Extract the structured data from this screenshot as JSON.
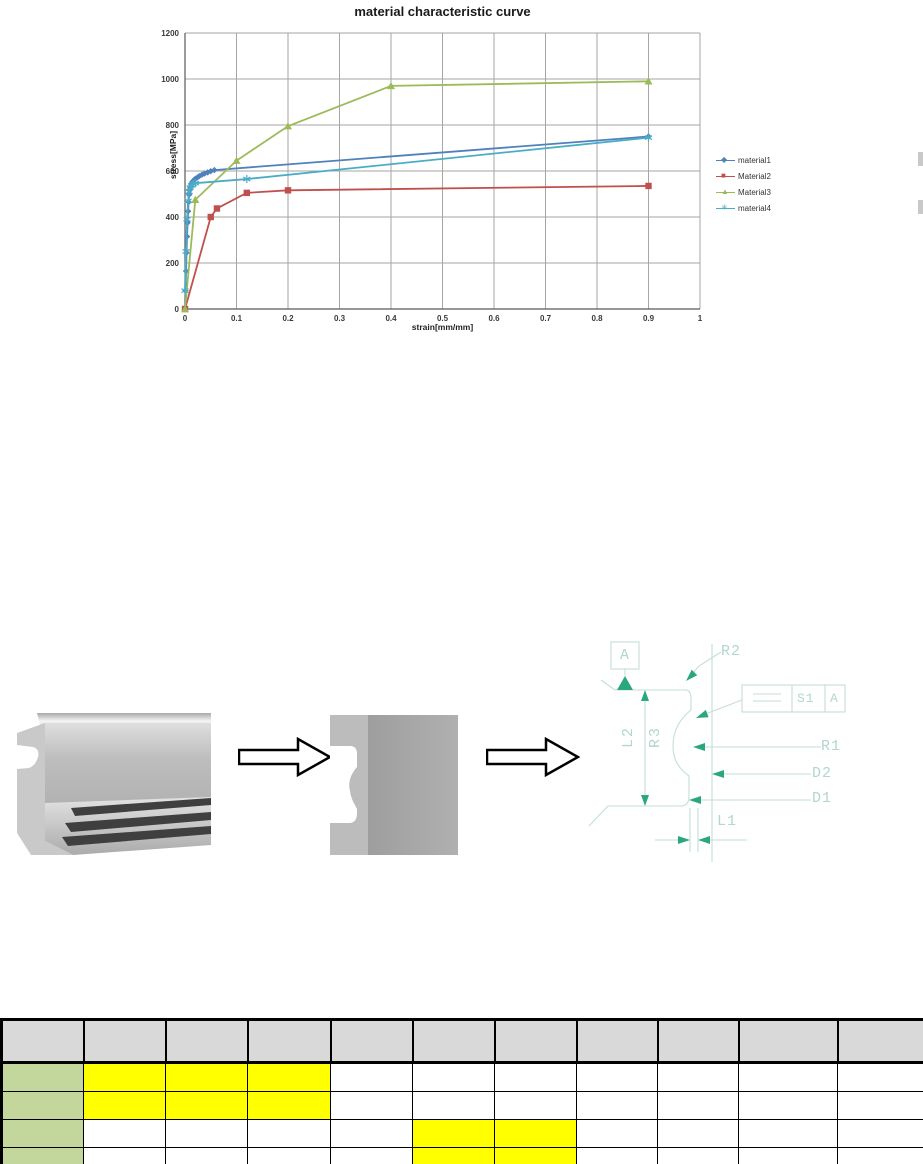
{
  "chart_data": {
    "type": "line",
    "title": "material characteristic curve",
    "xlabel": "strain[mm/mm]",
    "ylabel": "stress[MPa]",
    "xlim": [
      0,
      1
    ],
    "ylim": [
      0,
      1200
    ],
    "x_ticks": [
      "0",
      "0.1",
      "0.2",
      "0.3",
      "0.4",
      "0.5",
      "0.6",
      "0.7",
      "0.8",
      "0.9",
      "1"
    ],
    "y_ticks": [
      "0",
      "200",
      "400",
      "600",
      "800",
      "1000",
      "1200"
    ],
    "grid": true,
    "legend_position": "right",
    "series": [
      {
        "name": "material1",
        "color": "#4F81BD",
        "marker": "diamond",
        "glyph": "◆",
        "points": [
          [
            0,
            0
          ],
          [
            0.001,
            80
          ],
          [
            0.002,
            165
          ],
          [
            0.003,
            245
          ],
          [
            0.004,
            315
          ],
          [
            0.005,
            375
          ],
          [
            0.006,
            425
          ],
          [
            0.007,
            465
          ],
          [
            0.008,
            497
          ],
          [
            0.009,
            516
          ],
          [
            0.01,
            530
          ],
          [
            0.012,
            543
          ],
          [
            0.014,
            552
          ],
          [
            0.017,
            560
          ],
          [
            0.02,
            566
          ],
          [
            0.024,
            572
          ],
          [
            0.028,
            578
          ],
          [
            0.033,
            584
          ],
          [
            0.038,
            589
          ],
          [
            0.044,
            594
          ],
          [
            0.05,
            599
          ],
          [
            0.057,
            604
          ],
          [
            0.9,
            750
          ]
        ]
      },
      {
        "name": "Material2",
        "color": "#C0504D",
        "marker": "square",
        "glyph": "■",
        "points": [
          [
            0,
            0
          ],
          [
            0.05,
            400
          ],
          [
            0.062,
            437
          ],
          [
            0.12,
            505
          ],
          [
            0.2,
            516
          ],
          [
            0.9,
            535
          ]
        ]
      },
      {
        "name": "Material3",
        "color": "#9BBB59",
        "marker": "triangle",
        "glyph": "▲",
        "points": [
          [
            0,
            0
          ],
          [
            0.02,
            475
          ],
          [
            0.1,
            645
          ],
          [
            0.2,
            795
          ],
          [
            0.4,
            970
          ],
          [
            0.9,
            990
          ]
        ]
      },
      {
        "name": "material4",
        "color": "#4BACC6",
        "marker": "asterisk",
        "glyph": "✳",
        "points": [
          [
            0,
            80
          ],
          [
            0.002,
            250
          ],
          [
            0.004,
            390
          ],
          [
            0.006,
            470
          ],
          [
            0.008,
            510
          ],
          [
            0.01,
            528
          ],
          [
            0.013,
            538
          ],
          [
            0.016,
            543
          ],
          [
            0.02,
            547
          ],
          [
            0.12,
            565
          ],
          [
            0.9,
            745
          ]
        ]
      }
    ]
  },
  "drawing": {
    "datum_label": "A",
    "fcf": {
      "tolerance": "S1",
      "datum": "A"
    },
    "labels": {
      "r2": "R2",
      "r1": "R1",
      "d2": "D2",
      "d1": "D1",
      "l1": "L1",
      "l2": "L2",
      "r3": "R3"
    },
    "line_color": "#c3ded9",
    "arrow_color": "#2aa87c"
  },
  "table": {
    "columns": 11,
    "data_rows": 4,
    "header_bg": "#D9D9D9",
    "row_header_bg": "#C3D69B",
    "highlight_bg": "#FFFF00",
    "rows": [
      {
        "highlight_cols": [
          1,
          2,
          3
        ]
      },
      {
        "highlight_cols": [
          1,
          2,
          3
        ]
      },
      {
        "highlight_cols": [
          5,
          6
        ]
      },
      {
        "highlight_cols": [
          5,
          6
        ]
      }
    ]
  }
}
